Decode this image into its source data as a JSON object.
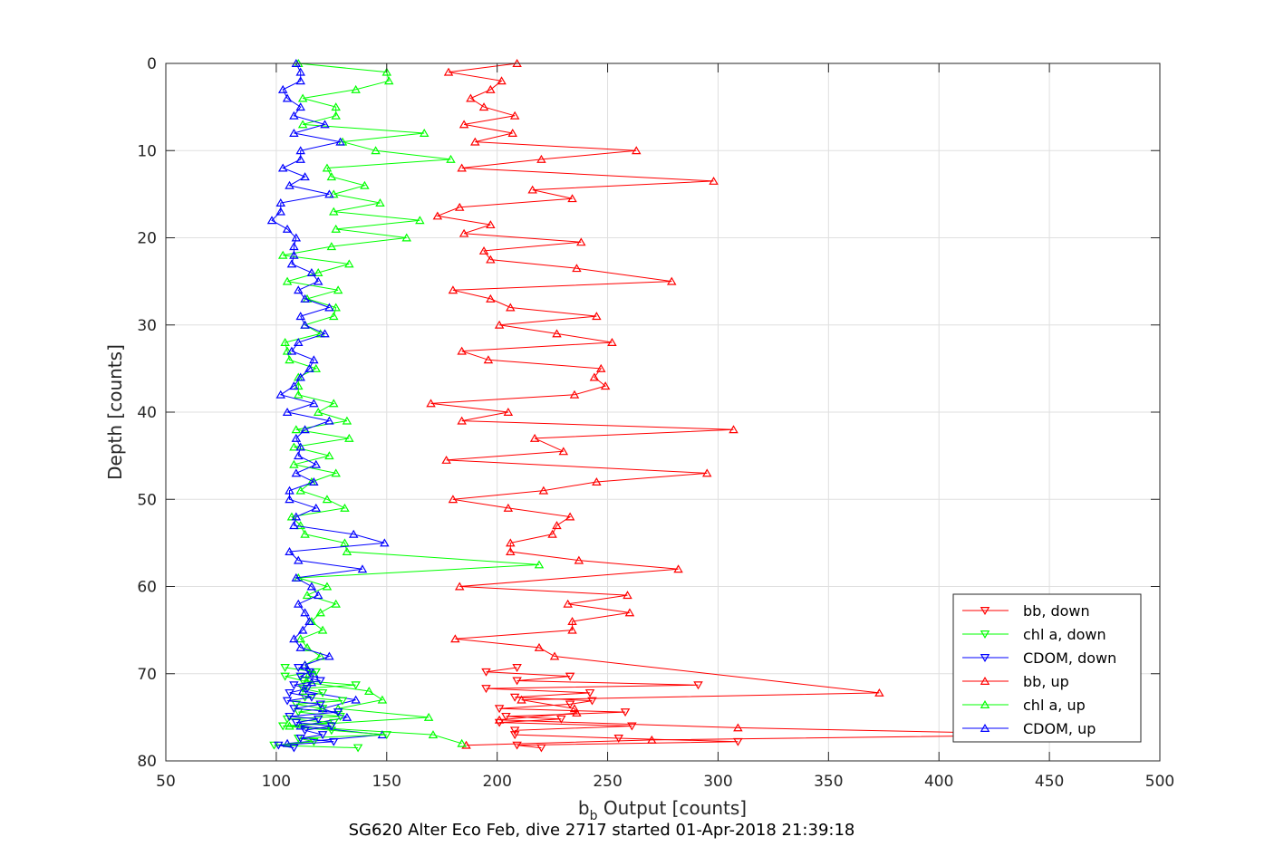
{
  "caption": "SG620 Alter Eco Feb, dive 2717 started 01-Apr-2018 21:39:18",
  "colors": {
    "bb": "#ff0000",
    "chl": "#00ff00",
    "cdom": "#0000ff"
  },
  "chart_data": {
    "type": "line",
    "title": "",
    "xlabel": "b_b Output [counts]",
    "xlabel_main": "b",
    "xlabel_sub": "b",
    "xlabel_rest": " Output [counts]",
    "ylabel": "Depth [counts]",
    "xlim": [
      50,
      500
    ],
    "ylim": [
      0,
      80
    ],
    "y_reversed": true,
    "xticks": [
      50,
      100,
      150,
      200,
      250,
      300,
      350,
      400,
      450,
      500
    ],
    "yticks": [
      0,
      10,
      20,
      30,
      40,
      50,
      60,
      70,
      80
    ],
    "grid": true,
    "legend_position": "bottom-right",
    "series": [
      {
        "name": "bb, down",
        "color_key": "bb",
        "marker": "triangle-down",
        "points": [
          [
            209,
            69.3
          ],
          [
            195,
            69.8
          ],
          [
            233,
            70.3
          ],
          [
            209,
            70.8
          ],
          [
            291,
            71.3
          ],
          [
            195,
            71.7
          ],
          [
            242,
            72.2
          ],
          [
            208,
            72.7
          ],
          [
            243,
            73.1
          ],
          [
            233,
            73.5
          ],
          [
            201,
            74.0
          ],
          [
            258,
            74.4
          ],
          [
            204,
            74.9
          ],
          [
            229,
            75.2
          ],
          [
            201,
            75.6
          ],
          [
            261,
            76.0
          ],
          [
            208,
            76.5
          ],
          [
            208,
            77.0
          ],
          [
            255,
            77.4
          ],
          [
            309,
            77.8
          ],
          [
            209,
            78.2
          ],
          [
            220,
            78.5
          ]
        ]
      },
      {
        "name": "chl a, down",
        "color_key": "chl",
        "marker": "triangle-down",
        "points": [
          [
            104,
            69.3
          ],
          [
            118,
            69.8
          ],
          [
            104,
            70.3
          ],
          [
            112,
            70.8
          ],
          [
            136,
            71.3
          ],
          [
            112,
            71.7
          ],
          [
            121,
            72.2
          ],
          [
            113,
            72.7
          ],
          [
            130,
            73.1
          ],
          [
            109,
            73.5
          ],
          [
            121,
            74.0
          ],
          [
            110,
            74.4
          ],
          [
            129,
            74.9
          ],
          [
            105,
            75.2
          ],
          [
            126,
            75.6
          ],
          [
            103,
            76.0
          ],
          [
            125,
            76.5
          ],
          [
            150,
            77.0
          ],
          [
            110,
            77.4
          ],
          [
            117,
            77.8
          ],
          [
            99,
            78.2
          ],
          [
            137,
            78.5
          ]
        ]
      },
      {
        "name": "CDOM, down",
        "color_key": "cdom",
        "marker": "triangle-down",
        "points": [
          [
            110,
            69.3
          ],
          [
            115,
            69.8
          ],
          [
            111,
            70.3
          ],
          [
            120,
            70.8
          ],
          [
            108,
            71.3
          ],
          [
            114,
            71.7
          ],
          [
            106,
            72.2
          ],
          [
            116,
            72.7
          ],
          [
            105,
            73.1
          ],
          [
            120,
            73.5
          ],
          [
            108,
            74.0
          ],
          [
            128,
            74.4
          ],
          [
            106,
            74.9
          ],
          [
            119,
            75.2
          ],
          [
            109,
            75.6
          ],
          [
            125,
            76.0
          ],
          [
            113,
            76.5
          ],
          [
            121,
            77.0
          ],
          [
            111,
            77.4
          ],
          [
            126,
            77.8
          ],
          [
            101,
            78.2
          ],
          [
            108,
            78.5
          ]
        ]
      },
      {
        "name": "bb, up",
        "color_key": "bb",
        "marker": "triangle-up",
        "points": [
          [
            209,
            0
          ],
          [
            178,
            1
          ],
          [
            202,
            2
          ],
          [
            197,
            3
          ],
          [
            188,
            4
          ],
          [
            194,
            5
          ],
          [
            208,
            6
          ],
          [
            185,
            7
          ],
          [
            207,
            8
          ],
          [
            190,
            9
          ],
          [
            263,
            10
          ],
          [
            220,
            11
          ],
          [
            184,
            12
          ],
          [
            298,
            13.5
          ],
          [
            216,
            14.5
          ],
          [
            234,
            15.5
          ],
          [
            183,
            16.5
          ],
          [
            173,
            17.5
          ],
          [
            197,
            18.5
          ],
          [
            185,
            19.5
          ],
          [
            238,
            20.5
          ],
          [
            194,
            21.5
          ],
          [
            197,
            22.5
          ],
          [
            236,
            23.5
          ],
          [
            279,
            25
          ],
          [
            180,
            26
          ],
          [
            197,
            27
          ],
          [
            206,
            28
          ],
          [
            245,
            29
          ],
          [
            201,
            30
          ],
          [
            227,
            31
          ],
          [
            252,
            32
          ],
          [
            184,
            33
          ],
          [
            196,
            34
          ],
          [
            247,
            35
          ],
          [
            244,
            36
          ],
          [
            249,
            37
          ],
          [
            235,
            38
          ],
          [
            170,
            39
          ],
          [
            205,
            40
          ],
          [
            184,
            41
          ],
          [
            307,
            42
          ],
          [
            217,
            43
          ],
          [
            230,
            44.5
          ],
          [
            177,
            45.5
          ],
          [
            295,
            47
          ],
          [
            245,
            48
          ],
          [
            221,
            49
          ],
          [
            180,
            50
          ],
          [
            205,
            51
          ],
          [
            233,
            52
          ],
          [
            227,
            53
          ],
          [
            225,
            54
          ],
          [
            206,
            55
          ],
          [
            206,
            56
          ],
          [
            237,
            57
          ],
          [
            282,
            58
          ],
          [
            183,
            60
          ],
          [
            259,
            61
          ],
          [
            232,
            62
          ],
          [
            260,
            63
          ],
          [
            234,
            64
          ],
          [
            234,
            65
          ],
          [
            181,
            66
          ],
          [
            219,
            67
          ],
          [
            226,
            68
          ],
          [
            373,
            72.2
          ],
          [
            211,
            73
          ],
          [
            235,
            74
          ],
          [
            236,
            74.5
          ],
          [
            201,
            75.3
          ],
          [
            309,
            76.2
          ],
          [
            460,
            77
          ],
          [
            270,
            77.6
          ],
          [
            186,
            78.2
          ]
        ]
      },
      {
        "name": "chl a, up",
        "color_key": "chl",
        "marker": "triangle-up",
        "points": [
          [
            110,
            0
          ],
          [
            150,
            1
          ],
          [
            151,
            2
          ],
          [
            136,
            3
          ],
          [
            112,
            4
          ],
          [
            127,
            5
          ],
          [
            127,
            6
          ],
          [
            112,
            7
          ],
          [
            167,
            8
          ],
          [
            130,
            9
          ],
          [
            145,
            10
          ],
          [
            179,
            11
          ],
          [
            123,
            12
          ],
          [
            125,
            13
          ],
          [
            140,
            14
          ],
          [
            126,
            15
          ],
          [
            147,
            16
          ],
          [
            126,
            17
          ],
          [
            165,
            18
          ],
          [
            127,
            19
          ],
          [
            159,
            20
          ],
          [
            125,
            21
          ],
          [
            103,
            22
          ],
          [
            133,
            23
          ],
          [
            119,
            24
          ],
          [
            105,
            25
          ],
          [
            128,
            26
          ],
          [
            114,
            27
          ],
          [
            127,
            28
          ],
          [
            126,
            29
          ],
          [
            113,
            30
          ],
          [
            120,
            31
          ],
          [
            104,
            32
          ],
          [
            105,
            33
          ],
          [
            106,
            34
          ],
          [
            118,
            35
          ],
          [
            110,
            36
          ],
          [
            110,
            37
          ],
          [
            110,
            38
          ],
          [
            126,
            39
          ],
          [
            119,
            40
          ],
          [
            132,
            41
          ],
          [
            109,
            42
          ],
          [
            133,
            43
          ],
          [
            108,
            44
          ],
          [
            124,
            45
          ],
          [
            108,
            46
          ],
          [
            127,
            47
          ],
          [
            116,
            48
          ],
          [
            111,
            49
          ],
          [
            123,
            50
          ],
          [
            131,
            51
          ],
          [
            107,
            52
          ],
          [
            111,
            53
          ],
          [
            113,
            54
          ],
          [
            131,
            55
          ],
          [
            132,
            56
          ],
          [
            219,
            57.5
          ],
          [
            110,
            59
          ],
          [
            123,
            60
          ],
          [
            114,
            61
          ],
          [
            127,
            62
          ],
          [
            120,
            63
          ],
          [
            116,
            64
          ],
          [
            121,
            65
          ],
          [
            111,
            66
          ],
          [
            114,
            67
          ],
          [
            120,
            68
          ],
          [
            113,
            69
          ],
          [
            115,
            70
          ],
          [
            114,
            71
          ],
          [
            142,
            72
          ],
          [
            148,
            73
          ],
          [
            128,
            74
          ],
          [
            169,
            75
          ],
          [
            106,
            76
          ],
          [
            171,
            77
          ],
          [
            184,
            78
          ]
        ]
      },
      {
        "name": "CDOM, up",
        "color_key": "cdom",
        "marker": "triangle-up",
        "points": [
          [
            109,
            0
          ],
          [
            111,
            1
          ],
          [
            111,
            2
          ],
          [
            103,
            3
          ],
          [
            105,
            4
          ],
          [
            111,
            5
          ],
          [
            108,
            6
          ],
          [
            122,
            7
          ],
          [
            108,
            8
          ],
          [
            129,
            9
          ],
          [
            111,
            10
          ],
          [
            111,
            11
          ],
          [
            103,
            12
          ],
          [
            113,
            13
          ],
          [
            106,
            14
          ],
          [
            124,
            15
          ],
          [
            102,
            16
          ],
          [
            102,
            17
          ],
          [
            98,
            18
          ],
          [
            105,
            19
          ],
          [
            109,
            20
          ],
          [
            108,
            21
          ],
          [
            108,
            22
          ],
          [
            107,
            23
          ],
          [
            116,
            24
          ],
          [
            119,
            25
          ],
          [
            110,
            26
          ],
          [
            113,
            27
          ],
          [
            124,
            28
          ],
          [
            111,
            29
          ],
          [
            113,
            30
          ],
          [
            122,
            31
          ],
          [
            110,
            32
          ],
          [
            107,
            33
          ],
          [
            117,
            34
          ],
          [
            115,
            35
          ],
          [
            111,
            36
          ],
          [
            108,
            37
          ],
          [
            102,
            38
          ],
          [
            117,
            39
          ],
          [
            105,
            40
          ],
          [
            124,
            41
          ],
          [
            113,
            42
          ],
          [
            109,
            43
          ],
          [
            111,
            44
          ],
          [
            110,
            45
          ],
          [
            118,
            46
          ],
          [
            109,
            47
          ],
          [
            117,
            48
          ],
          [
            106,
            49
          ],
          [
            106,
            50
          ],
          [
            118,
            51
          ],
          [
            109,
            52
          ],
          [
            108,
            53
          ],
          [
            135,
            54
          ],
          [
            149,
            55
          ],
          [
            106,
            56
          ],
          [
            110,
            57
          ],
          [
            139,
            58
          ],
          [
            109,
            59
          ],
          [
            116,
            60
          ],
          [
            119,
            61
          ],
          [
            110,
            62
          ],
          [
            113,
            63
          ],
          [
            115,
            64
          ],
          [
            112,
            65
          ],
          [
            108,
            66
          ],
          [
            111,
            67
          ],
          [
            124,
            68
          ],
          [
            113,
            69
          ],
          [
            117,
            70
          ],
          [
            116,
            71
          ],
          [
            112,
            72
          ],
          [
            136,
            73
          ],
          [
            121,
            74
          ],
          [
            132,
            75
          ],
          [
            111,
            76
          ],
          [
            148,
            77
          ],
          [
            105,
            78
          ]
        ]
      }
    ]
  }
}
